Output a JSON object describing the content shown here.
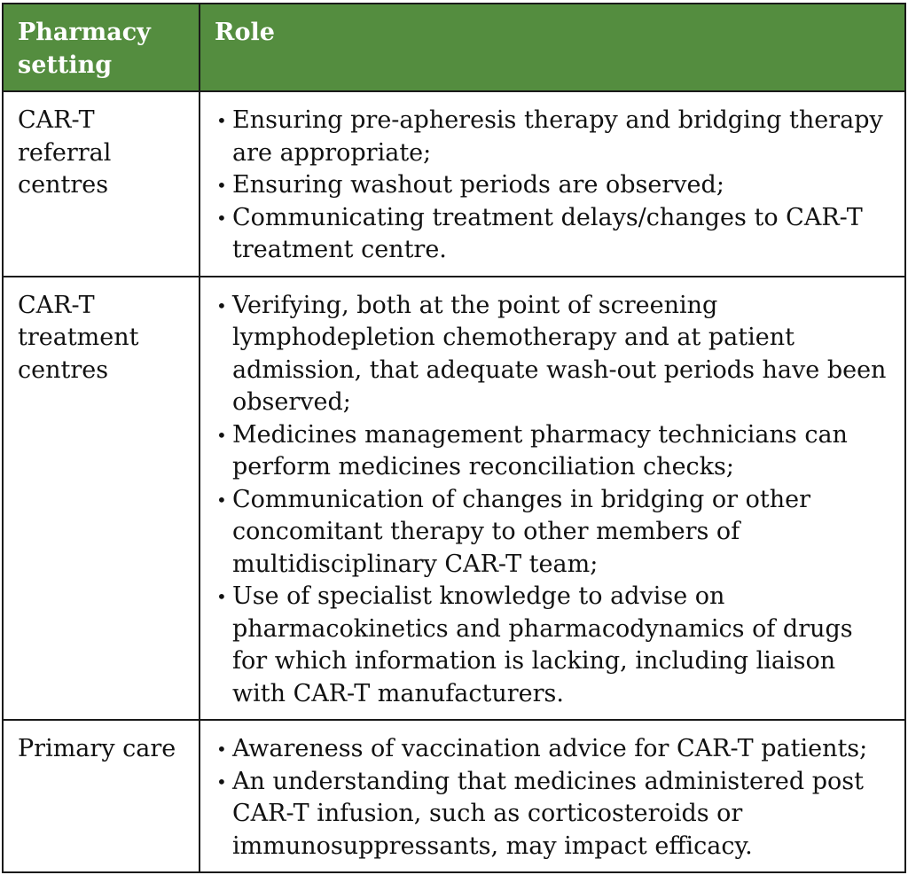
{
  "header": {
    "col1": "Pharmacy setting",
    "col2": "Role",
    "color": "#548d3f"
  },
  "rows": [
    {
      "setting": "CAR-T referral centres",
      "roles": [
        "Ensuring pre-apheresis therapy and bridging therapy are appropriate;",
        "Ensuring washout periods are observed;",
        "Communicating treatment delays/changes to CAR-T treatment centre."
      ]
    },
    {
      "setting": "CAR-T treatment centres",
      "roles": [
        "Verifying, both at the point of screening lymphodepletion chemotherapy and at patient admission, that adequate wash-out periods have been observed;",
        "Medicines management pharmacy technicians can perform medicines reconciliation checks;",
        "Communication of changes in bridging or other concomitant therapy to other members of multidisciplinary CAR-T team;",
        "Use of specialist knowledge to advise on pharmacokinetics and pharmacodynamics of drugs for which information is lacking, including liaison with CAR-T manufacturers."
      ]
    },
    {
      "setting": "Primary care",
      "roles": [
        "Awareness of vaccination advice for CAR-T patients;",
        "An understanding that medicines administered post CAR-T infusion, such as corticosteroids or immunosuppressants, may impact efficacy."
      ]
    }
  ]
}
